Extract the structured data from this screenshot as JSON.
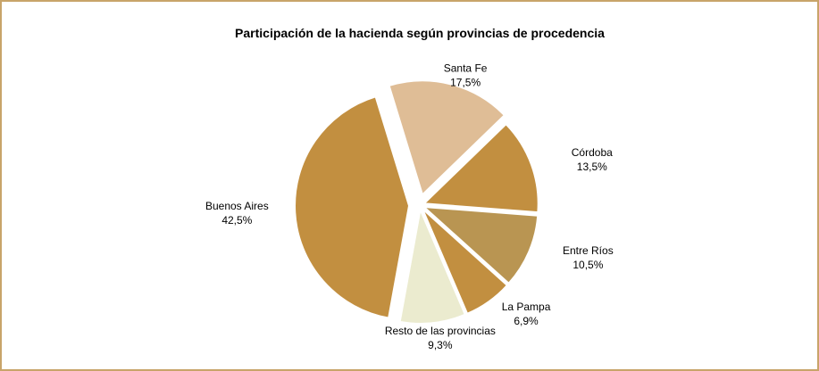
{
  "chart_data": {
    "type": "pie",
    "title": "Participación de la hacienda según provincias de procedencia",
    "categories": [
      "Santa Fe",
      "Córdoba",
      "Entre Ríos",
      "La Pampa",
      "Resto de las provincias",
      "Buenos Aires"
    ],
    "values": [
      17.5,
      13.5,
      10.5,
      6.9,
      9.3,
      42.5
    ],
    "value_labels": [
      "17,5%",
      "13,5%",
      "10,5%",
      "6,9%",
      "9,3%",
      "42,5%"
    ],
    "colors": [
      "#dfbd96",
      "#c28f40",
      "#b99552",
      "#c28f40",
      "#ebebcf",
      "#c28f40"
    ]
  }
}
